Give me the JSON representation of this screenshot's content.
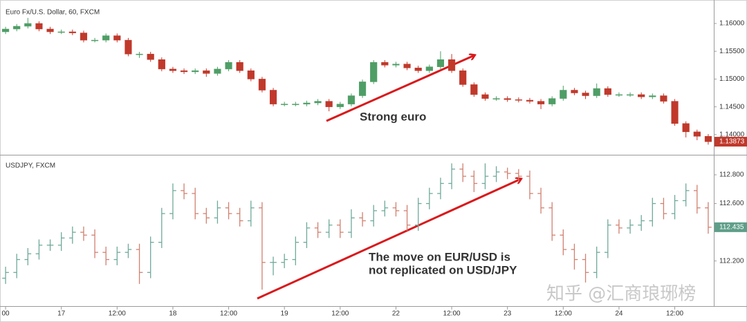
{
  "chart_data": [
    {
      "type": "candlestick",
      "title": "Euro Fx/U.S. Dollar, 60, FXCM",
      "annotation": "Strong euro",
      "ylim": [
        1.1365,
        1.1636
      ],
      "yticks": [
        {
          "value": 1.14,
          "label": "1.14000"
        },
        {
          "value": 1.145,
          "label": "1.14500"
        },
        {
          "value": 1.15,
          "label": "1.15000"
        },
        {
          "value": 1.155,
          "label": "1.15500"
        },
        {
          "value": 1.16,
          "label": "1.16000"
        }
      ],
      "grid": false,
      "up_color": "#4f9e66",
      "down_color": "#c0392b",
      "last_price": {
        "value": 1.13873,
        "label": "1.13873"
      },
      "last_price_color": "#c0392b",
      "open": [
        1.1585,
        1.159,
        1.1595,
        1.16,
        1.159,
        1.1585,
        1.1585,
        1.1583,
        1.157,
        1.157,
        1.1578,
        1.157,
        1.1545,
        1.1545,
        1.1535,
        1.1518,
        1.1515,
        1.1513,
        1.1515,
        1.151,
        1.1518,
        1.153,
        1.1515,
        1.15,
        1.148,
        1.1455,
        1.1455,
        1.1455,
        1.1457,
        1.146,
        1.145,
        1.1455,
        1.147,
        1.1495,
        1.153,
        1.1525,
        1.1527,
        1.152,
        1.1515,
        1.1522,
        1.1535,
        1.1515,
        1.149,
        1.1472,
        1.1465,
        1.1465,
        1.1463,
        1.1462,
        1.146,
        1.1455,
        1.1465,
        1.148,
        1.1475,
        1.147,
        1.1483,
        1.1472,
        1.1472,
        1.1472,
        1.1468,
        1.147,
        1.146,
        1.142,
        1.1405,
        1.1397
      ],
      "high": [
        1.1594,
        1.1599,
        1.161,
        1.1604,
        1.1594,
        1.1589,
        1.1589,
        1.1587,
        1.1574,
        1.1582,
        1.1582,
        1.1574,
        1.1549,
        1.1549,
        1.1539,
        1.1522,
        1.1519,
        1.1519,
        1.1519,
        1.1522,
        1.1534,
        1.1534,
        1.1519,
        1.1504,
        1.1484,
        1.1459,
        1.1459,
        1.1461,
        1.1464,
        1.1464,
        1.1459,
        1.1474,
        1.1499,
        1.1534,
        1.1534,
        1.1531,
        1.1531,
        1.1524,
        1.1526,
        1.155,
        1.1545,
        1.1519,
        1.1494,
        1.1476,
        1.1469,
        1.1469,
        1.1467,
        1.1466,
        1.1464,
        1.1469,
        1.1488,
        1.1484,
        1.1479,
        1.1492,
        1.1487,
        1.1476,
        1.1476,
        1.1476,
        1.1474,
        1.1474,
        1.1464,
        1.1424,
        1.1409,
        1.1401
      ],
      "low": [
        1.1581,
        1.1586,
        1.1591,
        1.1586,
        1.1581,
        1.1581,
        1.1579,
        1.1566,
        1.1566,
        1.1566,
        1.1566,
        1.1541,
        1.1538,
        1.1531,
        1.1514,
        1.1511,
        1.1509,
        1.1509,
        1.1504,
        1.1506,
        1.1514,
        1.1511,
        1.1496,
        1.1476,
        1.1451,
        1.1451,
        1.1451,
        1.1451,
        1.1453,
        1.1442,
        1.1446,
        1.1451,
        1.1466,
        1.1491,
        1.1521,
        1.1521,
        1.1516,
        1.1511,
        1.1511,
        1.1518,
        1.1511,
        1.1486,
        1.1468,
        1.1461,
        1.1461,
        1.1459,
        1.1458,
        1.1456,
        1.1446,
        1.1451,
        1.1461,
        1.1471,
        1.1464,
        1.1466,
        1.1468,
        1.1468,
        1.1468,
        1.1464,
        1.1464,
        1.1456,
        1.1416,
        1.1395,
        1.139,
        1.1382
      ],
      "close": [
        1.159,
        1.1595,
        1.16,
        1.159,
        1.1585,
        1.1585,
        1.1583,
        1.157,
        1.157,
        1.1578,
        1.157,
        1.1545,
        1.1545,
        1.1535,
        1.1518,
        1.1515,
        1.1513,
        1.1515,
        1.151,
        1.1518,
        1.153,
        1.1515,
        1.15,
        1.148,
        1.1455,
        1.1455,
        1.1455,
        1.1457,
        1.146,
        1.145,
        1.1455,
        1.147,
        1.1495,
        1.153,
        1.1525,
        1.1527,
        1.152,
        1.1515,
        1.1522,
        1.1535,
        1.1515,
        1.149,
        1.1472,
        1.1465,
        1.1465,
        1.1463,
        1.1462,
        1.146,
        1.1455,
        1.1465,
        1.148,
        1.1475,
        1.147,
        1.1483,
        1.1472,
        1.1472,
        1.1472,
        1.1468,
        1.147,
        1.146,
        1.142,
        1.1405,
        1.1397,
        1.13873
      ]
    },
    {
      "type": "ohlc",
      "title": "USDJPY, FXCM",
      "annotation": [
        "The move on EUR/USD is",
        "not replicated on USD/JPY"
      ],
      "watermark": "知乎 @汇商琅琊榜",
      "ylim": [
        111.9,
        112.93
      ],
      "yticks": [
        {
          "value": 112.2,
          "label": "112.200"
        },
        {
          "value": 112.6,
          "label": "112.600"
        },
        {
          "value": 112.8,
          "label": "112.800"
        }
      ],
      "grid": false,
      "up_color": "#6fa99a",
      "down_color": "#d0806f",
      "last_price": {
        "value": 112.435,
        "label": "112.435"
      },
      "last_price_color": "#5e9e88",
      "xlim": [
        0,
        64
      ],
      "xticks": [
        {
          "value": 0.5,
          "label": "00"
        },
        {
          "value": 5.5,
          "label": "17"
        },
        {
          "value": 10.5,
          "label": "12:00"
        },
        {
          "value": 15.5,
          "label": "18"
        },
        {
          "value": 20.5,
          "label": "12:00"
        },
        {
          "value": 25.5,
          "label": "19"
        },
        {
          "value": 30.5,
          "label": "12:00"
        },
        {
          "value": 35.5,
          "label": "22"
        },
        {
          "value": 40.5,
          "label": "12:00"
        },
        {
          "value": 45.5,
          "label": "23"
        },
        {
          "value": 50.5,
          "label": "12:00"
        },
        {
          "value": 55.5,
          "label": "24"
        },
        {
          "value": 60.5,
          "label": "12:00"
        }
      ],
      "open": [
        112.08,
        112.12,
        112.21,
        112.25,
        112.31,
        112.31,
        112.36,
        112.4,
        112.38,
        112.26,
        112.21,
        112.26,
        112.28,
        112.12,
        112.33,
        112.53,
        112.69,
        112.67,
        112.53,
        112.5,
        112.57,
        112.53,
        112.48,
        112.57,
        112.19,
        112.19,
        112.21,
        112.33,
        112.43,
        112.4,
        112.45,
        112.4,
        112.5,
        112.48,
        112.55,
        112.57,
        112.55,
        112.45,
        112.6,
        112.67,
        112.74,
        112.84,
        112.79,
        112.74,
        112.79,
        112.82,
        112.81,
        112.79,
        112.67,
        112.57,
        112.38,
        112.28,
        112.21,
        112.12,
        112.26,
        112.45,
        112.43,
        112.45,
        112.48,
        112.6,
        112.53,
        112.62,
        112.69,
        112.57
      ],
      "high": [
        112.16,
        112.25,
        112.29,
        112.35,
        112.35,
        112.4,
        112.44,
        112.44,
        112.42,
        112.3,
        112.3,
        112.32,
        112.32,
        112.37,
        112.57,
        112.74,
        112.74,
        112.71,
        112.57,
        112.62,
        112.61,
        112.57,
        112.62,
        112.61,
        112.23,
        112.25,
        112.37,
        112.47,
        112.47,
        112.49,
        112.49,
        112.56,
        112.54,
        112.59,
        112.62,
        112.61,
        112.59,
        112.64,
        112.71,
        112.78,
        112.88,
        112.88,
        112.83,
        112.88,
        112.86,
        112.85,
        112.84,
        112.83,
        112.71,
        112.61,
        112.42,
        112.32,
        112.25,
        112.3,
        112.49,
        112.49,
        112.49,
        112.52,
        112.64,
        112.64,
        112.66,
        112.74,
        112.73,
        112.61
      ],
      "low": [
        112.04,
        112.08,
        112.17,
        112.21,
        112.27,
        112.27,
        112.32,
        112.34,
        112.22,
        112.17,
        112.17,
        112.22,
        112.04,
        112.08,
        112.29,
        112.49,
        112.63,
        112.49,
        112.46,
        112.46,
        112.49,
        112.44,
        112.44,
        112.0,
        112.1,
        112.15,
        112.17,
        112.29,
        112.36,
        112.36,
        112.36,
        112.36,
        112.44,
        112.44,
        112.51,
        112.51,
        112.41,
        112.41,
        112.56,
        112.63,
        112.7,
        112.75,
        112.68,
        112.7,
        112.75,
        112.77,
        112.75,
        112.63,
        112.53,
        112.34,
        112.24,
        112.14,
        112.05,
        112.08,
        112.22,
        112.39,
        112.39,
        112.41,
        112.44,
        112.49,
        112.49,
        112.58,
        112.53,
        112.39
      ],
      "close": [
        112.12,
        112.21,
        112.25,
        112.31,
        112.31,
        112.36,
        112.4,
        112.38,
        112.26,
        112.21,
        112.26,
        112.28,
        112.12,
        112.33,
        112.53,
        112.69,
        112.67,
        112.53,
        112.5,
        112.57,
        112.53,
        112.48,
        112.57,
        112.19,
        112.19,
        112.21,
        112.33,
        112.43,
        112.4,
        112.45,
        112.4,
        112.5,
        112.48,
        112.55,
        112.57,
        112.55,
        112.45,
        112.6,
        112.67,
        112.74,
        112.84,
        112.79,
        112.74,
        112.79,
        112.82,
        112.81,
        112.79,
        112.67,
        112.57,
        112.38,
        112.28,
        112.21,
        112.12,
        112.26,
        112.45,
        112.43,
        112.45,
        112.48,
        112.6,
        112.53,
        112.62,
        112.69,
        112.57,
        112.435
      ]
    }
  ]
}
